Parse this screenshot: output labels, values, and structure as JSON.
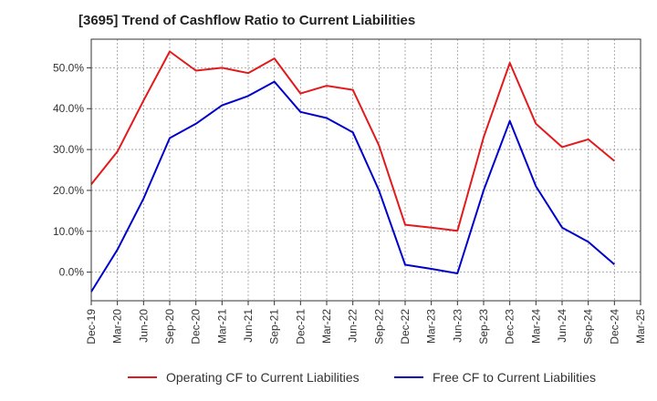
{
  "title": "[3695]  Trend of Cashflow Ratio to Current Liabilities",
  "chart_data": {
    "type": "line",
    "title": "[3695]  Trend of Cashflow Ratio to Current Liabilities",
    "xlabel": "",
    "ylabel": "",
    "categories": [
      "Dec-19",
      "Mar-20",
      "Jun-20",
      "Sep-20",
      "Dec-20",
      "Mar-21",
      "Jun-21",
      "Sep-21",
      "Dec-21",
      "Mar-22",
      "Jun-22",
      "Sep-22",
      "Dec-22",
      "Mar-23",
      "Jun-23",
      "Sep-23",
      "Dec-23",
      "Mar-24",
      "Jun-24",
      "Sep-24",
      "Dec-24",
      "Mar-25"
    ],
    "ytick_labels": [
      "0.0%",
      "10.0%",
      "20.0%",
      "30.0%",
      "40.0%",
      "50.0%"
    ],
    "ylim": [
      -7,
      57
    ],
    "grid": true,
    "legend_position": "bottom",
    "series": [
      {
        "name": "Operating CF to Current Liabilities",
        "color": "#e31a1c",
        "values": [
          21.5,
          29.5,
          42.0,
          54.0,
          49.3,
          50.0,
          48.7,
          52.3,
          43.7,
          45.6,
          44.6,
          31.0,
          11.6,
          10.9,
          10.1,
          33.0,
          51.2,
          36.3,
          30.6,
          32.5,
          27.2,
          null
        ]
      },
      {
        "name": "Free CF to Current Liabilities",
        "color": "#0000cc",
        "values": [
          -4.8,
          5.5,
          18.0,
          32.8,
          36.3,
          40.8,
          43.1,
          46.6,
          39.2,
          37.7,
          34.2,
          20.0,
          1.8,
          0.8,
          -0.3,
          20.0,
          37.0,
          21.0,
          10.9,
          7.4,
          1.9,
          null
        ]
      }
    ]
  }
}
